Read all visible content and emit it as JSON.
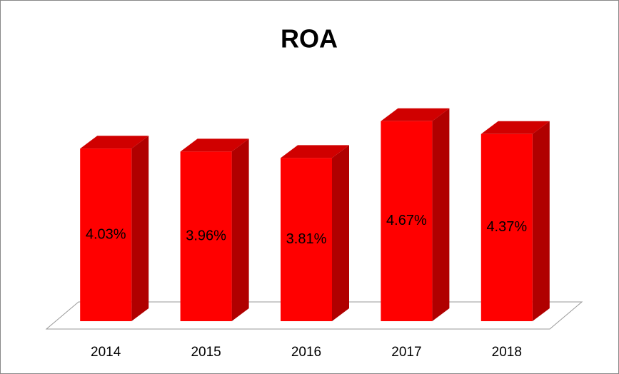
{
  "chart_data": {
    "type": "bar",
    "title": "ROA",
    "categories": [
      "2014",
      "2015",
      "2016",
      "2017",
      "2018"
    ],
    "values": [
      4.03,
      3.96,
      3.81,
      4.67,
      4.37
    ],
    "value_labels": [
      "4.03%",
      "3.96%",
      "3.81%",
      "4.67%",
      "4.37%"
    ],
    "color": "#ff0000",
    "ylim": [
      0,
      5
    ]
  }
}
